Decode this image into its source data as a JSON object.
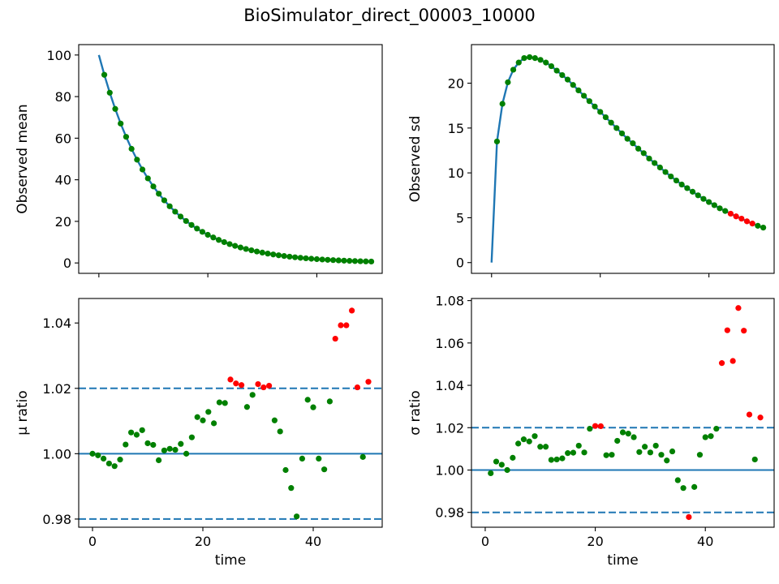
{
  "figure": {
    "title": "BioSimulator_direct_00003_10000"
  },
  "colors": {
    "line": "#1f77b4",
    "in_range": "#008000",
    "out_of_range": "#ff0000",
    "axes": "#000000",
    "background": "#ffffff"
  },
  "chart_data": [
    {
      "type": "scatter",
      "id": "mean",
      "ylabel": "Observed mean",
      "xlabel": "",
      "xlim": [
        -3.7,
        52
      ],
      "ylim": [
        -5,
        105
      ],
      "xticks": [
        0,
        20,
        40
      ],
      "xtick_labels_shown": false,
      "yticks": [
        0,
        20,
        40,
        60,
        80,
        100
      ],
      "ytick_labels": [
        "0",
        "20",
        "40",
        "60",
        "80",
        "100"
      ],
      "grid": false,
      "line": {
        "x": [
          0,
          1,
          2,
          3,
          4,
          5,
          6,
          7,
          8,
          9,
          10,
          11,
          12,
          13,
          14,
          15,
          16,
          17,
          18,
          19,
          20,
          21,
          22,
          23,
          24,
          25,
          26,
          27,
          28,
          29,
          30,
          31,
          32,
          33,
          34,
          35,
          36,
          37,
          38,
          39,
          40,
          41,
          42,
          43,
          44,
          45,
          46,
          47,
          48,
          49,
          50
        ],
        "y": [
          100.0,
          90.48,
          81.87,
          74.08,
          67.03,
          60.65,
          54.88,
          49.66,
          44.93,
          40.66,
          36.79,
          33.29,
          30.12,
          27.25,
          24.66,
          22.31,
          20.19,
          18.27,
          16.53,
          14.96,
          13.53,
          12.25,
          11.08,
          10.03,
          9.07,
          8.21,
          7.43,
          6.72,
          6.08,
          5.5,
          4.98,
          4.5,
          4.08,
          3.69,
          3.34,
          3.02,
          2.73,
          2.47,
          2.24,
          2.02,
          1.83,
          1.66,
          1.5,
          1.36,
          1.23,
          1.11,
          1.0,
          0.91,
          0.82,
          0.74,
          0.67
        ]
      },
      "points": {
        "x": [
          1,
          2,
          3,
          4,
          5,
          6,
          7,
          8,
          9,
          10,
          11,
          12,
          13,
          14,
          15,
          16,
          17,
          18,
          19,
          20,
          21,
          22,
          23,
          24,
          25,
          26,
          27,
          28,
          29,
          30,
          31,
          32,
          33,
          34,
          35,
          36,
          37,
          38,
          39,
          40,
          41,
          42,
          43,
          44,
          45,
          46,
          47,
          48,
          49,
          50
        ],
        "y": [
          90.48,
          81.87,
          74.08,
          67.03,
          60.65,
          54.88,
          49.66,
          44.93,
          40.66,
          36.79,
          33.29,
          30.12,
          27.25,
          24.66,
          22.31,
          20.19,
          18.27,
          16.53,
          14.96,
          13.53,
          12.25,
          11.08,
          10.03,
          9.07,
          8.21,
          7.43,
          6.72,
          6.08,
          5.5,
          4.98,
          4.5,
          4.08,
          3.69,
          3.34,
          3.02,
          2.73,
          2.47,
          2.24,
          2.02,
          1.83,
          1.66,
          1.5,
          1.36,
          1.23,
          1.11,
          1.0,
          0.91,
          0.82,
          0.74,
          0.67
        ],
        "flag": [
          0,
          0,
          0,
          0,
          0,
          0,
          0,
          0,
          0,
          0,
          0,
          0,
          0,
          0,
          0,
          0,
          0,
          0,
          0,
          0,
          0,
          0,
          0,
          0,
          0,
          0,
          0,
          0,
          0,
          0,
          0,
          0,
          0,
          0,
          0,
          0,
          0,
          0,
          0,
          0,
          0,
          0,
          0,
          0,
          0,
          0,
          0,
          0,
          0,
          0
        ]
      },
      "hlines": []
    },
    {
      "type": "scatter",
      "id": "sd",
      "ylabel": "Observed sd",
      "xlabel": "",
      "xlim": [
        -3.7,
        52
      ],
      "ylim": [
        -1.2,
        24.3
      ],
      "xticks": [
        0,
        20,
        40
      ],
      "xtick_labels_shown": false,
      "yticks": [
        0,
        5,
        10,
        15,
        20
      ],
      "ytick_labels": [
        "0",
        "5",
        "10",
        "15",
        "20"
      ],
      "grid": false,
      "line": {
        "x": [
          0,
          1,
          2,
          3,
          4,
          5,
          6,
          7,
          8,
          9,
          10,
          11,
          12,
          13,
          14,
          15,
          16,
          17,
          18,
          19,
          20,
          21,
          22,
          23,
          24,
          25,
          26,
          27,
          28,
          29,
          30,
          31,
          32,
          33,
          34,
          35,
          36,
          37,
          38,
          39,
          40,
          41,
          42,
          43,
          44,
          45,
          46,
          47,
          48,
          49,
          50
        ],
        "y": [
          0.0,
          13.5,
          17.7,
          20.1,
          21.5,
          22.3,
          22.8,
          22.9,
          22.8,
          22.6,
          22.3,
          21.9,
          21.4,
          20.9,
          20.4,
          19.8,
          19.2,
          18.6,
          18.0,
          17.4,
          16.8,
          16.2,
          15.6,
          15.0,
          14.4,
          13.8,
          13.3,
          12.7,
          12.2,
          11.6,
          11.1,
          10.6,
          10.1,
          9.6,
          9.15,
          8.7,
          8.3,
          7.9,
          7.5,
          7.1,
          6.75,
          6.4,
          6.05,
          5.75,
          5.45,
          5.15,
          4.9,
          4.6,
          4.35,
          4.1,
          3.9
        ]
      },
      "points": {
        "x": [
          1,
          2,
          3,
          4,
          5,
          6,
          7,
          8,
          9,
          10,
          11,
          12,
          13,
          14,
          15,
          16,
          17,
          18,
          19,
          20,
          21,
          22,
          23,
          24,
          25,
          26,
          27,
          28,
          29,
          30,
          31,
          32,
          33,
          34,
          35,
          36,
          37,
          38,
          39,
          40,
          41,
          42,
          43,
          44,
          45,
          46,
          47,
          48,
          49,
          50
        ],
        "y": [
          13.5,
          17.7,
          20.1,
          21.5,
          22.3,
          22.8,
          22.9,
          22.8,
          22.6,
          22.3,
          21.9,
          21.4,
          20.9,
          20.4,
          19.8,
          19.2,
          18.6,
          18.0,
          17.4,
          16.8,
          16.2,
          15.6,
          15.0,
          14.4,
          13.8,
          13.3,
          12.7,
          12.2,
          11.6,
          11.1,
          10.6,
          10.1,
          9.6,
          9.15,
          8.7,
          8.3,
          7.9,
          7.5,
          7.1,
          6.75,
          6.4,
          6.05,
          5.75,
          5.45,
          5.15,
          4.9,
          4.6,
          4.35,
          4.1,
          3.9
        ],
        "flag": [
          0,
          0,
          0,
          0,
          0,
          0,
          0,
          0,
          0,
          0,
          0,
          0,
          0,
          0,
          0,
          0,
          0,
          0,
          0,
          0,
          0,
          0,
          0,
          0,
          0,
          0,
          0,
          0,
          0,
          0,
          0,
          0,
          0,
          0,
          0,
          0,
          0,
          0,
          0,
          0,
          0,
          0,
          0,
          1,
          1,
          1,
          1,
          1,
          0,
          0
        ]
      },
      "hlines": []
    },
    {
      "type": "scatter",
      "id": "mu-ratio",
      "ylabel": "μ ratio",
      "xlabel": "time",
      "xlim": [
        -2.5,
        52.5
      ],
      "ylim": [
        0.9775,
        1.0475
      ],
      "xticks": [
        0,
        20,
        40
      ],
      "xtick_labels_shown": true,
      "xtick_labels": [
        "0",
        "20",
        "40"
      ],
      "yticks": [
        0.98,
        1.0,
        1.02,
        1.04
      ],
      "ytick_labels": [
        "0.98",
        "1.00",
        "1.02",
        "1.04"
      ],
      "grid": false,
      "line": null,
      "points": {
        "x": [
          0,
          1,
          2,
          3,
          4,
          5,
          6,
          7,
          8,
          9,
          10,
          11,
          12,
          13,
          14,
          15,
          16,
          17,
          18,
          19,
          20,
          21,
          22,
          23,
          24,
          25,
          26,
          27,
          28,
          29,
          30,
          31,
          32,
          33,
          34,
          35,
          36,
          37,
          38,
          39,
          40,
          41,
          42,
          43,
          44,
          45,
          46,
          47,
          48,
          49,
          50
        ],
        "y": [
          1.0,
          0.9995,
          0.9985,
          0.997,
          0.9962,
          0.9982,
          1.0028,
          1.0065,
          1.0058,
          1.0072,
          1.0032,
          1.0027,
          0.998,
          1.001,
          1.0015,
          1.0012,
          1.003,
          1.0,
          1.005,
          1.0112,
          1.0102,
          1.0128,
          1.0093,
          1.0157,
          1.0155,
          1.0227,
          1.0215,
          1.021,
          1.0143,
          1.018,
          1.0213,
          1.0203,
          1.0208,
          1.0102,
          1.0068,
          0.995,
          0.9895,
          0.9808,
          0.9985,
          1.0165,
          1.0142,
          0.9985,
          0.9952,
          1.016,
          1.0352,
          1.0393,
          1.0393,
          1.0438,
          1.0203,
          0.999,
          1.022
        ],
        "flag": [
          0,
          0,
          0,
          0,
          0,
          0,
          0,
          0,
          0,
          0,
          0,
          0,
          0,
          0,
          0,
          0,
          0,
          0,
          0,
          0,
          0,
          0,
          0,
          0,
          0,
          1,
          1,
          1,
          0,
          0,
          1,
          1,
          1,
          0,
          0,
          0,
          0,
          0,
          0,
          0,
          0,
          0,
          0,
          0,
          1,
          1,
          1,
          1,
          1,
          0,
          1
        ]
      },
      "hlines": [
        {
          "y": 1.02,
          "style": "dashed"
        },
        {
          "y": 1.0,
          "style": "solid"
        },
        {
          "y": 0.98,
          "style": "dashed"
        }
      ]
    },
    {
      "type": "scatter",
      "id": "sigma-ratio",
      "ylabel": "σ ratio",
      "xlabel": "time",
      "xlim": [
        -2.5,
        52.5
      ],
      "ylim": [
        0.973,
        1.081
      ],
      "xticks": [
        0,
        20,
        40
      ],
      "xtick_labels_shown": true,
      "xtick_labels": [
        "0",
        "20",
        "40"
      ],
      "yticks": [
        0.98,
        1.0,
        1.02,
        1.04,
        1.06,
        1.08
      ],
      "ytick_labels": [
        "0.98",
        "1.00",
        "1.02",
        "1.04",
        "1.06",
        "1.08"
      ],
      "grid": false,
      "line": null,
      "points": {
        "x": [
          1,
          2,
          3,
          4,
          5,
          6,
          7,
          8,
          9,
          10,
          11,
          12,
          13,
          14,
          15,
          16,
          17,
          18,
          19,
          20,
          21,
          22,
          23,
          24,
          25,
          26,
          27,
          28,
          29,
          30,
          31,
          32,
          33,
          34,
          35,
          36,
          37,
          38,
          39,
          40,
          41,
          42,
          43,
          44,
          45,
          46,
          47,
          48,
          49,
          50
        ],
        "y": [
          0.9985,
          1.004,
          1.0025,
          1.0,
          1.0058,
          1.0125,
          1.0145,
          1.0135,
          1.016,
          1.011,
          1.011,
          1.0048,
          1.005,
          1.0055,
          1.008,
          1.0082,
          1.0115,
          1.0083,
          1.0195,
          1.0208,
          1.0207,
          1.007,
          1.0072,
          1.0138,
          1.0178,
          1.0172,
          1.0155,
          1.0085,
          1.011,
          1.0083,
          1.0115,
          1.0072,
          1.0045,
          1.0088,
          0.9952,
          0.9915,
          0.9778,
          0.992,
          1.0072,
          1.0155,
          1.016,
          1.0195,
          1.0505,
          1.066,
          1.0515,
          1.0765,
          1.0658,
          1.0262,
          1.005,
          1.0248
        ],
        "flag": [
          0,
          0,
          0,
          0,
          0,
          0,
          0,
          0,
          0,
          0,
          0,
          0,
          0,
          0,
          0,
          0,
          0,
          0,
          0,
          1,
          1,
          0,
          0,
          0,
          0,
          0,
          0,
          0,
          0,
          0,
          0,
          0,
          0,
          0,
          0,
          0,
          1,
          0,
          0,
          0,
          0,
          0,
          1,
          1,
          1,
          1,
          1,
          1,
          0,
          1
        ]
      },
      "hlines": [
        {
          "y": 1.02,
          "style": "dashed"
        },
        {
          "y": 1.0,
          "style": "solid"
        },
        {
          "y": 0.98,
          "style": "dashed"
        }
      ]
    }
  ]
}
